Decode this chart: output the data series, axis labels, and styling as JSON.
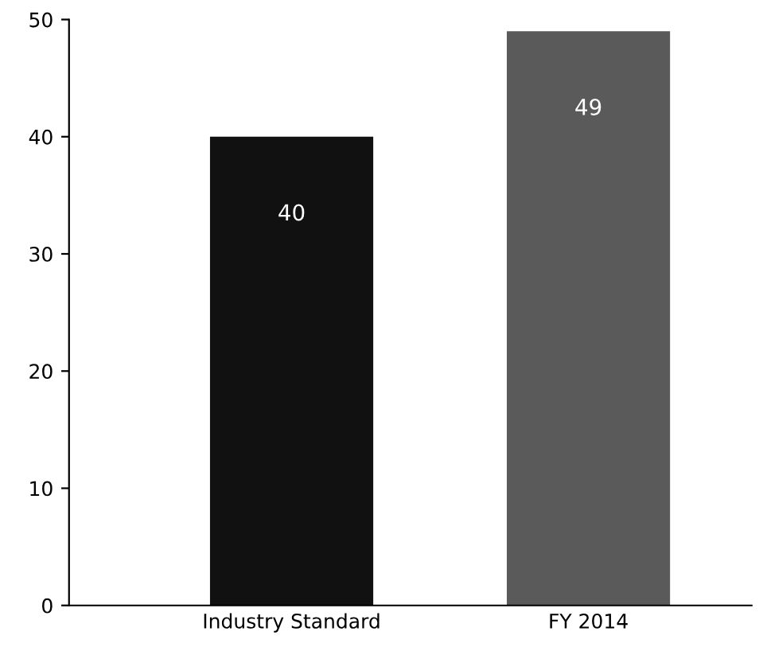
{
  "chart_data": {
    "type": "bar",
    "categories": [
      "Industry Standard",
      "FY 2014"
    ],
    "values": [
      40,
      49
    ],
    "colors": [
      "#111111",
      "#5a5a5a"
    ],
    "ylim": [
      0,
      50
    ],
    "yticks": [
      0,
      10,
      20,
      30,
      40,
      50
    ],
    "data_labels": true,
    "grid": false,
    "legend": false
  }
}
